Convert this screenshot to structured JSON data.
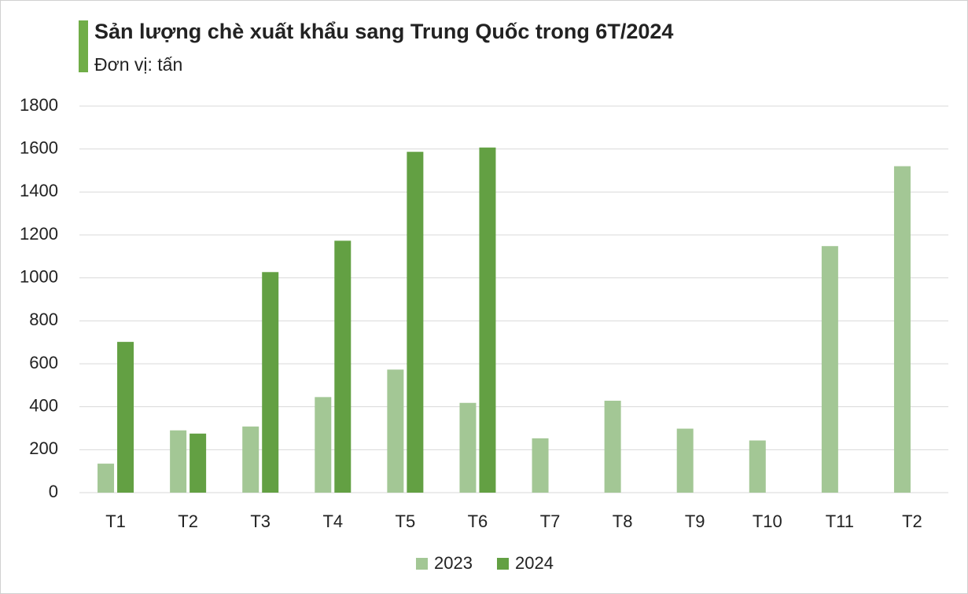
{
  "chart_data": {
    "type": "bar",
    "title": "Sản lượng chè xuất khẩu sang Trung Quốc trong 6T/2024",
    "subtitle": "Đơn vị: tấn",
    "categories": [
      "T1",
      "T2",
      "T3",
      "T4",
      "T5",
      "T6",
      "T7",
      "T8",
      "T9",
      "T10",
      "T11",
      "T2"
    ],
    "series": [
      {
        "name": "2023",
        "color": "#a3c795",
        "values": [
          135,
          290,
          308,
          445,
          573,
          418,
          253,
          428,
          298,
          243,
          1148,
          1520
        ]
      },
      {
        "name": "2024",
        "color": "#63a043",
        "values": [
          702,
          275,
          1027,
          1173,
          1587,
          1607,
          null,
          null,
          null,
          null,
          null,
          null
        ]
      }
    ],
    "ylim": [
      0,
      1800
    ],
    "yticks": [
      0,
      200,
      400,
      600,
      800,
      1000,
      1200,
      1400,
      1600,
      1800
    ],
    "grid": true
  }
}
